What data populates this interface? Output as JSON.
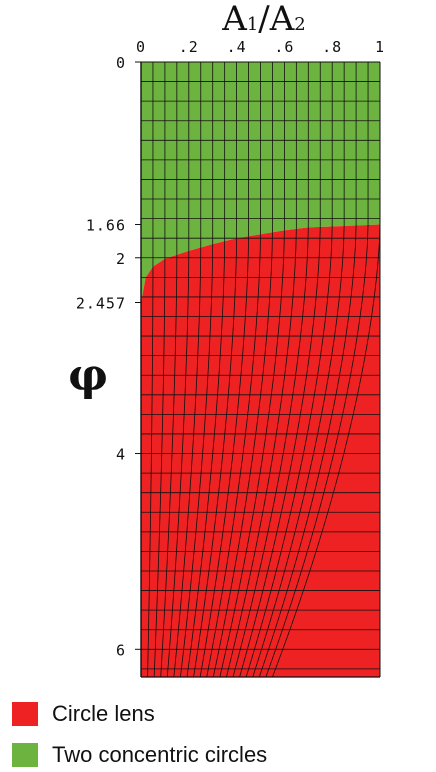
{
  "chart_data": {
    "type": "area",
    "title": "",
    "xlabel_main": "A",
    "xlabel_sub1": "1",
    "xlabel_slash": "/",
    "xlabel_main2": "A",
    "xlabel_sub2": "2",
    "ylabel": "φ",
    "xlim": [
      0,
      1
    ],
    "ylim": [
      0,
      6.283
    ],
    "y_reversed": true,
    "x_ticks": [
      {
        "value": 0.0,
        "label": "0"
      },
      {
        "value": 0.2,
        "label": ".2"
      },
      {
        "value": 0.4,
        "label": ".4"
      },
      {
        "value": 0.6,
        "label": ".6"
      },
      {
        "value": 0.8,
        "label": ".8"
      },
      {
        "value": 1.0,
        "label": "1"
      }
    ],
    "y_ticks": [
      {
        "value": 0,
        "label": "0"
      },
      {
        "value": 1.66,
        "label": "1.66"
      },
      {
        "value": 2.0,
        "label": "2"
      },
      {
        "value": 2.457,
        "label": "2.457"
      },
      {
        "value": 4.0,
        "label": "4"
      },
      {
        "value": 6.0,
        "label": "6"
      }
    ],
    "boundary": {
      "x": [
        0.0,
        0.02,
        0.05,
        0.1,
        0.2,
        0.3,
        0.4,
        0.5,
        0.6,
        0.7,
        0.8,
        0.9,
        1.0
      ],
      "phi": [
        2.457,
        2.2,
        2.09,
        2.01,
        1.93,
        1.86,
        1.8,
        1.76,
        1.72,
        1.69,
        1.68,
        1.67,
        1.66
      ]
    },
    "series": [
      {
        "name": "Circle lens",
        "color": "#ee2222",
        "region": "phi >= boundary"
      },
      {
        "name": "Two concentric circles",
        "color": "#6db33f",
        "region": "phi < boundary"
      }
    ],
    "grid": true
  },
  "legend": {
    "items": [
      {
        "label": "Circle lens",
        "color": "#ee2222"
      },
      {
        "label": "Two concentric circles",
        "color": "#6db33f"
      }
    ],
    "placement": "bottom-left"
  }
}
